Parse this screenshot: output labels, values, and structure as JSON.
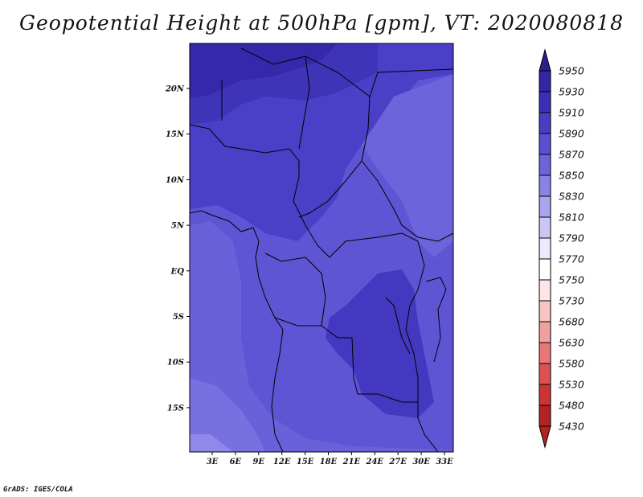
{
  "title": "Geopotential Height at 500hPa [gpm], VT: 2020080818",
  "credit": "GrADS: IGES/COLA",
  "map": {
    "lat_labels": [
      "20N",
      "15N",
      "10N",
      "5N",
      "EQ",
      "5S",
      "10S",
      "15S"
    ],
    "lon_labels": [
      "3E",
      "6E",
      "9E",
      "12E",
      "15E",
      "18E",
      "21E",
      "24E",
      "27E",
      "30E",
      "33E"
    ]
  },
  "colorbar": {
    "levels": [
      "5950",
      "5930",
      "5910",
      "5890",
      "5870",
      "5850",
      "5830",
      "5810",
      "5790",
      "5770",
      "5750",
      "5730",
      "5680",
      "5630",
      "5580",
      "5530",
      "5480",
      "5430"
    ],
    "colors": [
      "#2b1f8c",
      "#3426a3",
      "#3d2fb5",
      "#4a3dc4",
      "#5a4fd0",
      "#6d63da",
      "#8a82e6",
      "#aaa3ee",
      "#cbc7f5",
      "#eceaff",
      "#ffffff",
      "#fde6e6",
      "#f8c4c4",
      "#f0a0a0",
      "#e87878",
      "#dc5252",
      "#cc3434",
      "#b22222"
    ]
  }
}
